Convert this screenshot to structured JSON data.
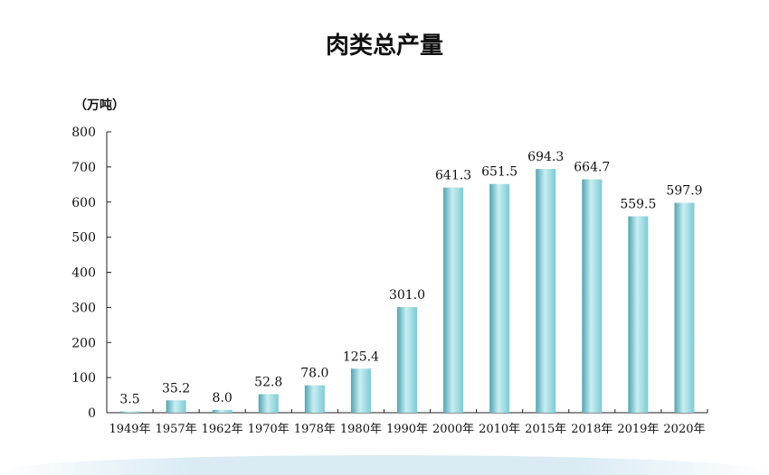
{
  "title": "肉类总产量",
  "chart_data": {
    "type": "bar",
    "title": "肉类总产量",
    "ylabel": "（万吨）",
    "xlabel": "",
    "ylim": [
      0,
      800
    ],
    "yticks": [
      "0",
      "100",
      "200",
      "300",
      "400",
      "500",
      "600",
      "700",
      "800"
    ],
    "categories": [
      "1949年",
      "1957年",
      "1962年",
      "1970年",
      "1978年",
      "1980年",
      "1990年",
      "2000年",
      "2010年",
      "2015年",
      "2018年",
      "2019年",
      "2020年"
    ],
    "values": [
      3.5,
      35.2,
      8.0,
      52.8,
      78.0,
      125.4,
      301.0,
      641.3,
      651.5,
      694.3,
      664.7,
      559.5,
      597.9
    ],
    "value_labels": [
      "3.5",
      "35.2",
      "8.0",
      "52.8",
      "78.0",
      "125.4",
      "301.0",
      "641.3",
      "651.5",
      "694.3",
      "664.7",
      "559.5",
      "597.9"
    ],
    "grid": false,
    "bar_color": "#7ccbd4",
    "bar_highlight": "#c9eef2",
    "bar_shadow": "#4fa5b2"
  }
}
